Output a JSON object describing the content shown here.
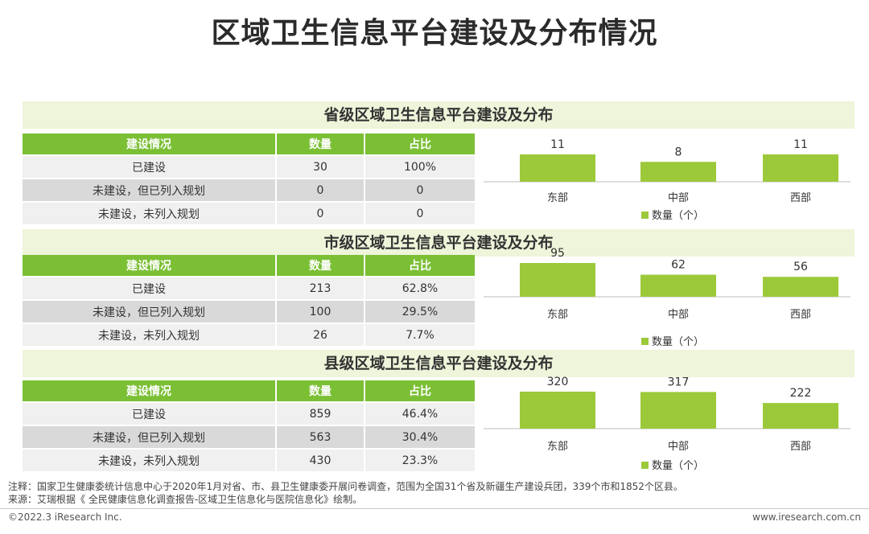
{
  "title": "区域卫生信息平台建设及分布情况",
  "table_headers": [
    "建设情况",
    "数量",
    "占比"
  ],
  "legend_label": "数量（个）",
  "colors": {
    "bar": "#9cc93a",
    "header": "#7bbf35",
    "banner": "#eef5da"
  },
  "sections": [
    {
      "heading": "省级区域卫生信息平台建设及分布",
      "rows": [
        {
          "status": "已建设",
          "count": "30",
          "share": "100%"
        },
        {
          "status": "未建设，但已列入规划",
          "count": "0",
          "share": "0"
        },
        {
          "status": "未建设，未列入规划",
          "count": "0",
          "share": "0"
        }
      ]
    },
    {
      "heading": "市级区域卫生信息平台建设及分布",
      "rows": [
        {
          "status": "已建设",
          "count": "213",
          "share": "62.8%"
        },
        {
          "status": "未建设，但已列入规划",
          "count": "100",
          "share": "29.5%"
        },
        {
          "status": "未建设，未列入规划",
          "count": "26",
          "share": "7.7%"
        }
      ]
    },
    {
      "heading": "县级区域卫生信息平台建设及分布",
      "rows": [
        {
          "status": "已建设",
          "count": "859",
          "share": "46.4%"
        },
        {
          "status": "未建设，但已列入规划",
          "count": "563",
          "share": "30.4%"
        },
        {
          "status": "未建设，未列入规划",
          "count": "430",
          "share": "23.3%"
        }
      ]
    }
  ],
  "chart_data": [
    {
      "type": "bar",
      "categories": [
        "东部",
        "中部",
        "西部"
      ],
      "values": [
        11,
        8,
        11
      ],
      "legend": "数量（个）",
      "ylim": [
        0,
        11
      ]
    },
    {
      "type": "bar",
      "categories": [
        "东部",
        "中部",
        "西部"
      ],
      "values": [
        95,
        62,
        56
      ],
      "legend": "数量（个）",
      "ylim": [
        0,
        95
      ]
    },
    {
      "type": "bar",
      "categories": [
        "东部",
        "中部",
        "西部"
      ],
      "values": [
        320,
        317,
        222
      ],
      "legend": "数量（个）",
      "ylim": [
        0,
        320
      ]
    }
  ],
  "note": "注释：国家卫生健康委统计信息中心于2020年1月对省、市、县卫生健康委开展问卷调查，范围为全国31个省及新疆生产建设兵团，339个市和1852个区县。",
  "source": "来源：艾瑞根据《 全民健康信息化调查报告-区域卫生信息化与医院信息化》绘制。",
  "footer_left": "©2022.3 iResearch Inc.",
  "footer_right": "www.iresearch.com.cn"
}
